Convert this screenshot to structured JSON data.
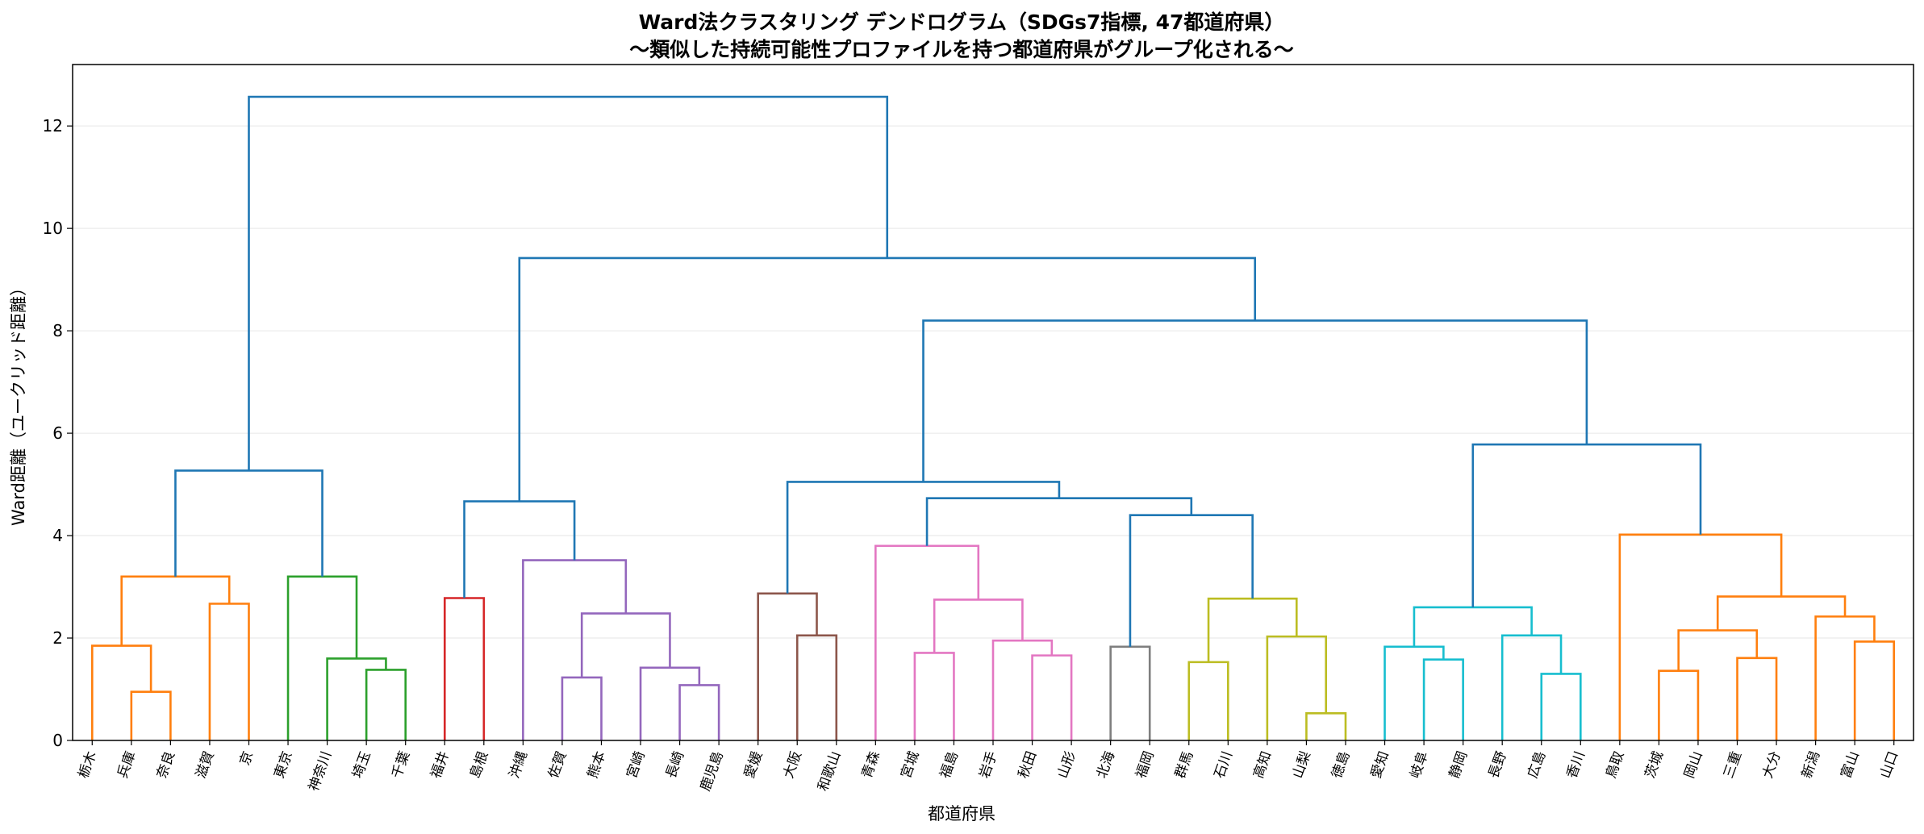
{
  "chart_data": {
    "type": "dendrogram",
    "title": "Ward法クラスタリング デンドログラム（SDGs7指標, 47都道府県）",
    "subtitle": "〜類似した持続可能性プロファイルを持つ都道府県がグループ化される〜",
    "xlabel": "都道府県",
    "ylabel": "Ward距離（ユークリッド距離）",
    "ylim": [
      0,
      13.2
    ],
    "yticks": [
      0,
      2,
      4,
      6,
      8,
      10,
      12
    ],
    "grid": true,
    "leaves": [
      "栃木",
      "兵庫",
      "奈良",
      "滋賀",
      "京",
      "東京",
      "神奈川",
      "埼玉",
      "千葉",
      "福井",
      "島根",
      "沖縄",
      "佐賀",
      "熊本",
      "宮崎",
      "長崎",
      "鹿児島",
      "愛媛",
      "大阪",
      "和歌山",
      "青森",
      "宮城",
      "福島",
      "岩手",
      "秋田",
      "山形",
      "北海",
      "福岡",
      "群馬",
      "石川",
      "高知",
      "山梨",
      "徳島",
      "愛知",
      "岐阜",
      "静岡",
      "長野",
      "広島",
      "香川",
      "鳥取",
      "茨城",
      "岡山",
      "三重",
      "大分",
      "新潟",
      "富山",
      "山口"
    ],
    "merges": [
      {
        "id": "m1",
        "a": "l1",
        "b": "l2",
        "height": 0.95,
        "color": "#ff7f0e"
      },
      {
        "id": "m2",
        "a": "l0",
        "b": "m1",
        "height": 1.85,
        "color": "#ff7f0e"
      },
      {
        "id": "m3",
        "a": "l3",
        "b": "l4",
        "height": 2.67,
        "color": "#ff7f0e"
      },
      {
        "id": "m4",
        "a": "m2",
        "b": "m3",
        "height": 3.2,
        "color": "#ff7f0e"
      },
      {
        "id": "m5",
        "a": "l7",
        "b": "l8",
        "height": 1.38,
        "color": "#2ca02c"
      },
      {
        "id": "m6",
        "a": "l6",
        "b": "m5",
        "height": 1.6,
        "color": "#2ca02c"
      },
      {
        "id": "m7",
        "a": "l5",
        "b": "m6",
        "height": 3.2,
        "color": "#2ca02c"
      },
      {
        "id": "m8",
        "a": "m4",
        "b": "m7",
        "height": 5.27,
        "color": "#1f77b4"
      },
      {
        "id": "m9",
        "a": "l9",
        "b": "l10",
        "height": 2.78,
        "color": "#d62728"
      },
      {
        "id": "m10",
        "a": "l12",
        "b": "l13",
        "height": 1.23,
        "color": "#9467bd"
      },
      {
        "id": "m11",
        "a": "l15",
        "b": "l16",
        "height": 1.08,
        "color": "#9467bd"
      },
      {
        "id": "m12",
        "a": "l14",
        "b": "m11",
        "height": 1.42,
        "color": "#9467bd"
      },
      {
        "id": "m13",
        "a": "m10",
        "b": "m12",
        "height": 2.48,
        "color": "#9467bd"
      },
      {
        "id": "m14",
        "a": "l11",
        "b": "m13",
        "height": 3.52,
        "color": "#9467bd"
      },
      {
        "id": "m15",
        "a": "m9",
        "b": "m14",
        "height": 4.67,
        "color": "#1f77b4"
      },
      {
        "id": "m16",
        "a": "l18",
        "b": "l19",
        "height": 2.05,
        "color": "#8c564b"
      },
      {
        "id": "m17",
        "a": "l17",
        "b": "m16",
        "height": 2.87,
        "color": "#8c564b"
      },
      {
        "id": "m18",
        "a": "l21",
        "b": "l22",
        "height": 1.71,
        "color": "#e377c2"
      },
      {
        "id": "m19",
        "a": "l24",
        "b": "l25",
        "height": 1.66,
        "color": "#e377c2"
      },
      {
        "id": "m20",
        "a": "l23",
        "b": "m19",
        "height": 1.95,
        "color": "#e377c2"
      },
      {
        "id": "m21",
        "a": "m18",
        "b": "m20",
        "height": 2.75,
        "color": "#e377c2"
      },
      {
        "id": "m22",
        "a": "l20",
        "b": "m21",
        "height": 3.8,
        "color": "#e377c2"
      },
      {
        "id": "m23",
        "a": "l26",
        "b": "l27",
        "height": 1.83,
        "color": "#7f7f7f"
      },
      {
        "id": "m24",
        "a": "l28",
        "b": "l29",
        "height": 1.53,
        "color": "#bcbd22"
      },
      {
        "id": "m25",
        "a": "l31",
        "b": "l32",
        "height": 0.53,
        "color": "#bcbd22"
      },
      {
        "id": "m26",
        "a": "l30",
        "b": "m25",
        "height": 2.03,
        "color": "#bcbd22"
      },
      {
        "id": "m27",
        "a": "m24",
        "b": "m26",
        "height": 2.77,
        "color": "#bcbd22"
      },
      {
        "id": "m28",
        "a": "m23",
        "b": "m27",
        "height": 4.4,
        "color": "#1f77b4"
      },
      {
        "id": "m29",
        "a": "m22",
        "b": "m28",
        "height": 4.73,
        "color": "#1f77b4"
      },
      {
        "id": "m30",
        "a": "m17",
        "b": "m29",
        "height": 5.05,
        "color": "#1f77b4"
      },
      {
        "id": "m31",
        "a": "l34",
        "b": "l35",
        "height": 1.58,
        "color": "#17becf"
      },
      {
        "id": "m32",
        "a": "l33",
        "b": "m31",
        "height": 1.83,
        "color": "#17becf"
      },
      {
        "id": "m33",
        "a": "l37",
        "b": "l38",
        "height": 1.3,
        "color": "#17becf"
      },
      {
        "id": "m34",
        "a": "l36",
        "b": "m33",
        "height": 2.05,
        "color": "#17becf"
      },
      {
        "id": "m35",
        "a": "m32",
        "b": "m34",
        "height": 2.6,
        "color": "#17becf"
      },
      {
        "id": "m36",
        "a": "l40",
        "b": "l41",
        "height": 1.36,
        "color": "#ff7f0e"
      },
      {
        "id": "m37",
        "a": "l42",
        "b": "l43",
        "height": 1.61,
        "color": "#ff7f0e"
      },
      {
        "id": "m38",
        "a": "m36",
        "b": "m37",
        "height": 2.15,
        "color": "#ff7f0e"
      },
      {
        "id": "m39",
        "a": "l45",
        "b": "l46",
        "height": 1.93,
        "color": "#ff7f0e"
      },
      {
        "id": "m40",
        "a": "l44",
        "b": "m39",
        "height": 2.42,
        "color": "#ff7f0e"
      },
      {
        "id": "m41",
        "a": "m38",
        "b": "m40",
        "height": 2.81,
        "color": "#ff7f0e"
      },
      {
        "id": "m42",
        "a": "l39",
        "b": "m41",
        "height": 4.02,
        "color": "#ff7f0e"
      },
      {
        "id": "m43",
        "a": "m35",
        "b": "m42",
        "height": 5.78,
        "color": "#1f77b4"
      },
      {
        "id": "m44",
        "a": "m30",
        "b": "m43",
        "height": 8.2,
        "color": "#1f77b4"
      },
      {
        "id": "m45",
        "a": "m15",
        "b": "m44",
        "height": 9.42,
        "color": "#1f77b4"
      },
      {
        "id": "m46",
        "a": "m8",
        "b": "m45",
        "height": 12.57,
        "color": "#1f77b4"
      }
    ]
  }
}
